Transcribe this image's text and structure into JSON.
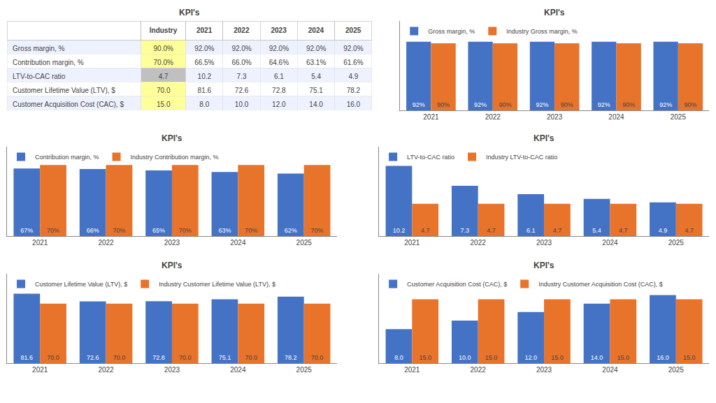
{
  "chart_data": [
    {
      "type": "table",
      "title": "KPI's",
      "categories": [
        "Industry",
        "2021",
        "2022",
        "2023",
        "2024",
        "2025"
      ],
      "series": [
        {
          "name": "Gross margin, %",
          "values": [
            90.0,
            92.0,
            92.0,
            92.0,
            92.0,
            92.0
          ],
          "value_labels": [
            "90.0%",
            "92.0%",
            "92.0%",
            "92.0%",
            "92.0%",
            "92.0%"
          ]
        },
        {
          "name": "Contribution margin, %",
          "values": [
            70.0,
            66.5,
            66.0,
            64.6,
            63.1,
            61.6
          ],
          "value_labels": [
            "70.0%",
            "66.5%",
            "66.0%",
            "64.6%",
            "63.1%",
            "61.6%"
          ]
        },
        {
          "name": "LTV-to-CAC ratio",
          "values": [
            4.7,
            10.2,
            7.3,
            6.1,
            5.4,
            4.9
          ],
          "value_labels": [
            "4.7",
            "10.2",
            "7.3",
            "6.1",
            "5.4",
            "4.9"
          ]
        },
        {
          "name": "Customer Lifetime Value (LTV), $",
          "values": [
            70.0,
            81.6,
            72.6,
            72.8,
            75.1,
            78.2
          ],
          "value_labels": [
            "70.0",
            "81.6",
            "72.6",
            "72.8",
            "75.1",
            "78.2"
          ]
        },
        {
          "name": "Customer Acquisition Cost (CAC), $",
          "values": [
            15.0,
            8.0,
            10.0,
            12.0,
            14.0,
            16.0
          ],
          "value_labels": [
            "15.0",
            "8.0",
            "10.0",
            "12.0",
            "14.0",
            "16.0"
          ]
        }
      ],
      "colors": [
        "#FFFF99",
        "#FFFF99",
        "#C0C0C0",
        "#FFFF99",
        "#FFFF99"
      ]
    },
    {
      "type": "bar",
      "title": "KPI's",
      "categories": [
        "2021",
        "2022",
        "2023",
        "2024",
        "2025"
      ],
      "series": [
        {
          "name": "Gross margin, %",
          "color": "#4472C4",
          "values": [
            92,
            92,
            92,
            92,
            92
          ],
          "value_labels": [
            "92%",
            "92%",
            "92%",
            "92%",
            "92%"
          ]
        },
        {
          "name": "Industry Gross margin, %",
          "color": "#E8732A",
          "values": [
            90,
            90,
            90,
            90,
            90
          ],
          "value_labels": [
            "90%",
            "90%",
            "90%",
            "90%",
            "90%"
          ]
        }
      ],
      "ylim": [
        0,
        120
      ],
      "grid": false,
      "legend": "upper left",
      "data_labels": true,
      "tick_labels": "x"
    },
    {
      "type": "bar",
      "title": "KPI's",
      "categories": [
        "2021",
        "2022",
        "2023",
        "2024",
        "2025"
      ],
      "series": [
        {
          "name": "Contribution margin, %",
          "color": "#4472C4",
          "values": [
            66.5,
            66.0,
            64.6,
            63.1,
            61.6
          ],
          "value_labels": [
            "67%",
            "66%",
            "65%",
            "63%",
            "62%"
          ]
        },
        {
          "name": "Industry Contribution margin, %",
          "color": "#E8732A",
          "values": [
            70,
            70,
            70,
            70,
            70
          ],
          "value_labels": [
            "70%",
            "70%",
            "70%",
            "70%",
            "70%"
          ]
        }
      ],
      "ylim": [
        0,
        88
      ],
      "grid": false,
      "legend": "upper left",
      "data_labels": true,
      "tick_labels": "x"
    },
    {
      "type": "bar",
      "title": "KPI's",
      "categories": [
        "2021",
        "2022",
        "2023",
        "2024",
        "2025"
      ],
      "series": [
        {
          "name": "LTV-to-CAC ratio",
          "color": "#4472C4",
          "values": [
            10.2,
            7.3,
            6.1,
            5.4,
            4.9
          ]
        },
        {
          "name": "Industry LTV-to-CAC ratio",
          "color": "#E8732A",
          "values": [
            4.7,
            4.7,
            4.7,
            4.7,
            4.7
          ]
        }
      ],
      "ylim": [
        0,
        13
      ],
      "grid": false,
      "legend": "upper left",
      "data_labels": true,
      "tick_labels": "x"
    },
    {
      "type": "bar",
      "title": "KPI's",
      "categories": [
        "2021",
        "2022",
        "2023",
        "2024",
        "2025"
      ],
      "series": [
        {
          "name": "Customer Lifetime Value (LTV), $",
          "color": "#4472C4",
          "values": [
            81.6,
            72.6,
            72.8,
            75.1,
            78.2
          ]
        },
        {
          "name": "Industry Customer Lifetime Value (LTV), $",
          "color": "#E8732A",
          "values": [
            70,
            70,
            70,
            70,
            70
          ],
          "value_labels": [
            "70.0",
            "70.0",
            "70.0",
            "70.0",
            "70.0"
          ]
        }
      ],
      "ylim": [
        0,
        105
      ],
      "grid": false,
      "legend": "upper left",
      "data_labels": true,
      "tick_labels": "x"
    },
    {
      "type": "bar",
      "title": "KPI's",
      "categories": [
        "2021",
        "2022",
        "2023",
        "2024",
        "2025"
      ],
      "series": [
        {
          "name": "Customer Acquisition Cost (CAC), $",
          "color": "#4472C4",
          "values": [
            8.0,
            10.0,
            12.0,
            14.0,
            16.0
          ],
          "value_labels": [
            "8.0",
            "10.0",
            "12.0",
            "14.0",
            "16.0"
          ]
        },
        {
          "name": "Industry Customer Acquisition Cost (CAC), $",
          "color": "#E8732A",
          "values": [
            15,
            15,
            15,
            15,
            15
          ],
          "value_labels": [
            "15.0",
            "15.0",
            "15.0",
            "15.0",
            "15.0"
          ]
        }
      ],
      "ylim": [
        0,
        21
      ],
      "grid": false,
      "legend": "upper left",
      "data_labels": true,
      "tick_labels": "x"
    }
  ]
}
